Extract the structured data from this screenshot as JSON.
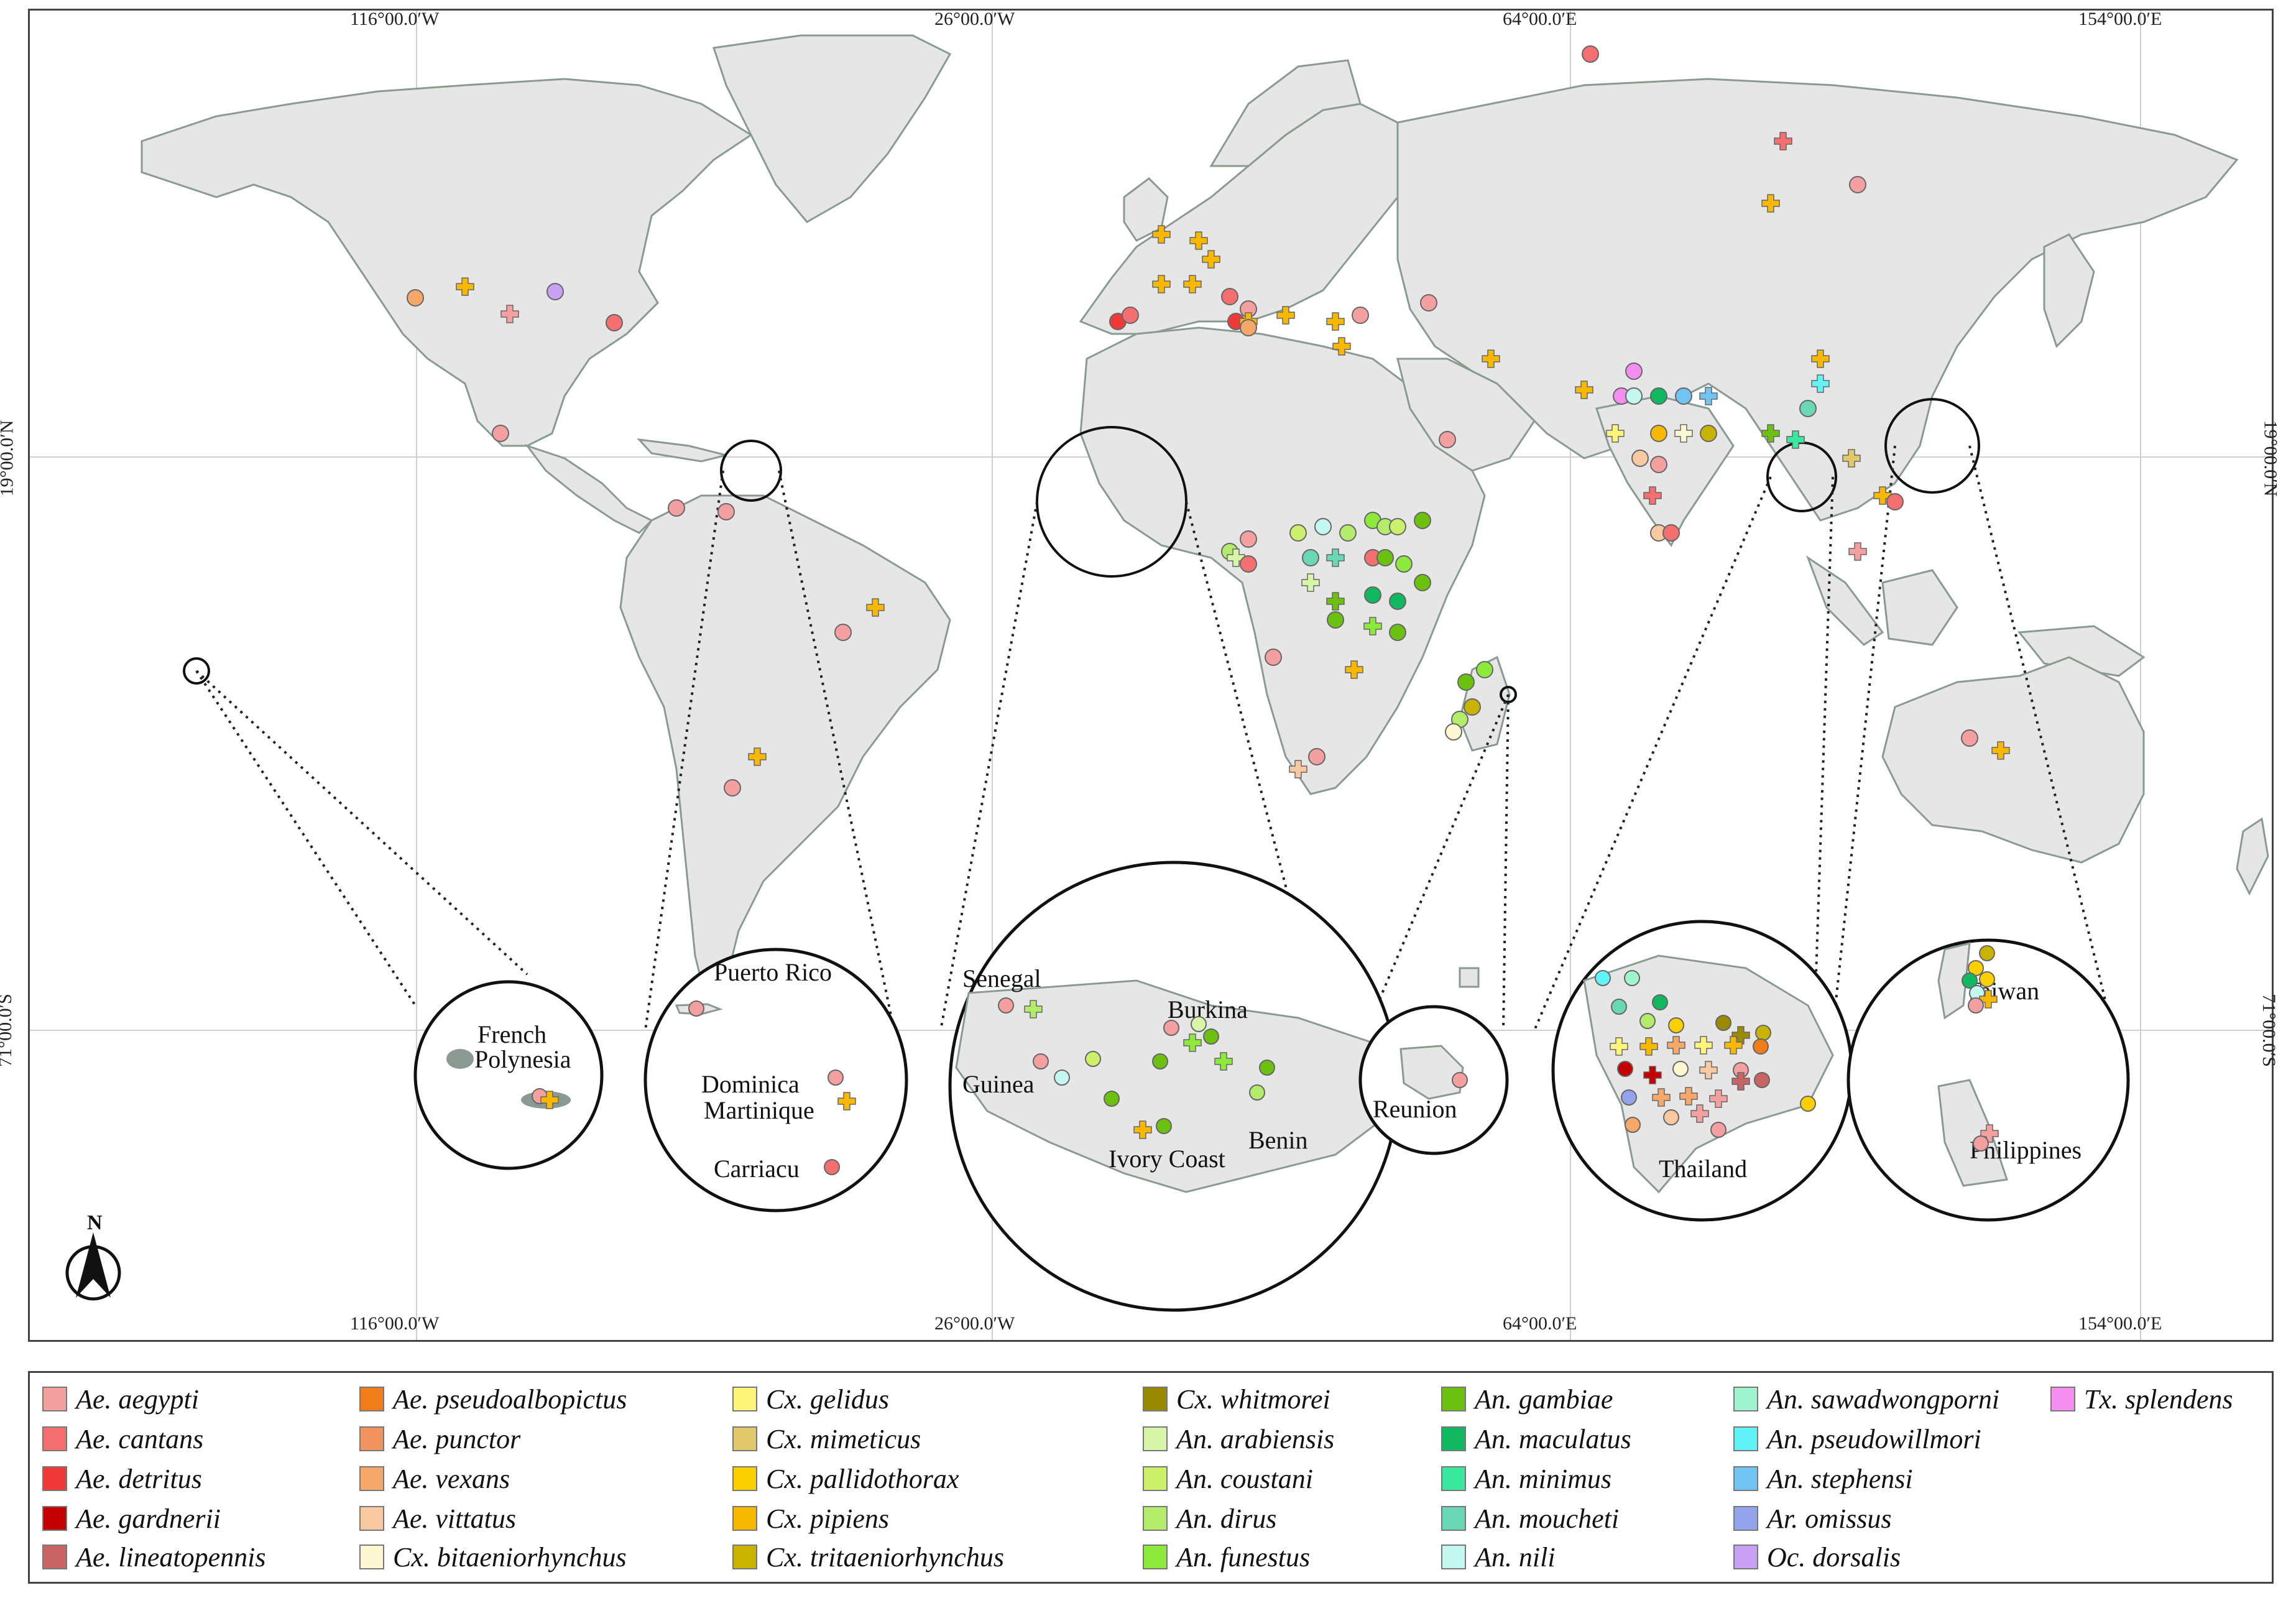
{
  "colors": {
    "land": "#e6e6e6",
    "border": "#8a9a92",
    "water": "#ffffff",
    "grid": "#cfcfcf"
  },
  "coordinates": {
    "top": [
      "116°00.0′W",
      "26°00.0′W",
      "64°00.0′E",
      "154°00.0′E"
    ],
    "bottom": [
      "116°00.0′W",
      "26°00.0′W",
      "64°00.0′E",
      "154°00.0′E"
    ],
    "left": [
      "19°00.0′N",
      "71°00.0′S"
    ],
    "right": [
      "19°00.0′N",
      "71°00.0′S"
    ]
  },
  "north_arrow": {
    "label": "N"
  },
  "insets": {
    "polynesia": [
      "French",
      "Polynesia"
    ],
    "caribbean": [
      "Puerto Rico",
      "Dominica",
      "Martinique",
      "Carriacu"
    ],
    "west_africa": [
      "Senegal",
      "Guinea",
      "Burkina",
      "Ivory Coast",
      "Benin"
    ],
    "reunion": [
      "Reunion"
    ],
    "thailand": [
      "Thailand"
    ],
    "east_asia": [
      "Taiwan",
      "Philippines"
    ]
  },
  "legend": [
    {
      "label": "Ae. aegypti",
      "color": "#f4a0a0"
    },
    {
      "label": "Ae. cantans",
      "color": "#f47070"
    },
    {
      "label": "Ae. detritus",
      "color": "#f03a3a"
    },
    {
      "label": "Ae. gardnerii",
      "color": "#c40000"
    },
    {
      "label": "Ae. lineatopennis",
      "color": "#c96464"
    },
    {
      "label": "Ae. pseudoalbopictus",
      "color": "#f07d1a"
    },
    {
      "label": "Ae. punctor",
      "color": "#f29460"
    },
    {
      "label": "Ae. vexans",
      "color": "#f5a86a"
    },
    {
      "label": "Ae. vittatus",
      "color": "#f8c8a0"
    },
    {
      "label": "Cx. bitaeniorhynchus",
      "color": "#fdf7d2"
    },
    {
      "label": "Cx. gelidus",
      "color": "#fdf47a"
    },
    {
      "label": "Cx. mimeticus",
      "color": "#e2c86a"
    },
    {
      "label": "Cx. pallidothorax",
      "color": "#fcd000"
    },
    {
      "label": "Cx. pipiens",
      "color": "#f9b800"
    },
    {
      "label": "Cx. tritaeniorhynchus",
      "color": "#c8b400"
    },
    {
      "label": "Cx. whitmorei",
      "color": "#9a8a00"
    },
    {
      "label": "An. arabiensis",
      "color": "#d8f6a8"
    },
    {
      "label": "An. coustani",
      "color": "#cdf06a"
    },
    {
      "label": "An. dirus",
      "color": "#b2ec6a"
    },
    {
      "label": "An. funestus",
      "color": "#8eea3a"
    },
    {
      "label": "An. gambiae",
      "color": "#6cc010"
    },
    {
      "label": "An. maculatus",
      "color": "#10b860"
    },
    {
      "label": "An. minimus",
      "color": "#3ae8a0"
    },
    {
      "label": "An. moucheti",
      "color": "#6ad8b4"
    },
    {
      "label": "An. nili",
      "color": "#c4f8f0"
    },
    {
      "label": "An. sawadwongporni",
      "color": "#a0f4d0"
    },
    {
      "label": "An. pseudowillmori",
      "color": "#60f4f8"
    },
    {
      "label": "An. stephensi",
      "color": "#70c4f4"
    },
    {
      "label": "Ar. omissus",
      "color": "#94a4ec"
    },
    {
      "label": "Oc. dorsalis",
      "color": "#c8a0f4"
    },
    {
      "label": "Tx. splendens",
      "color": "#f48ef0"
    }
  ]
}
